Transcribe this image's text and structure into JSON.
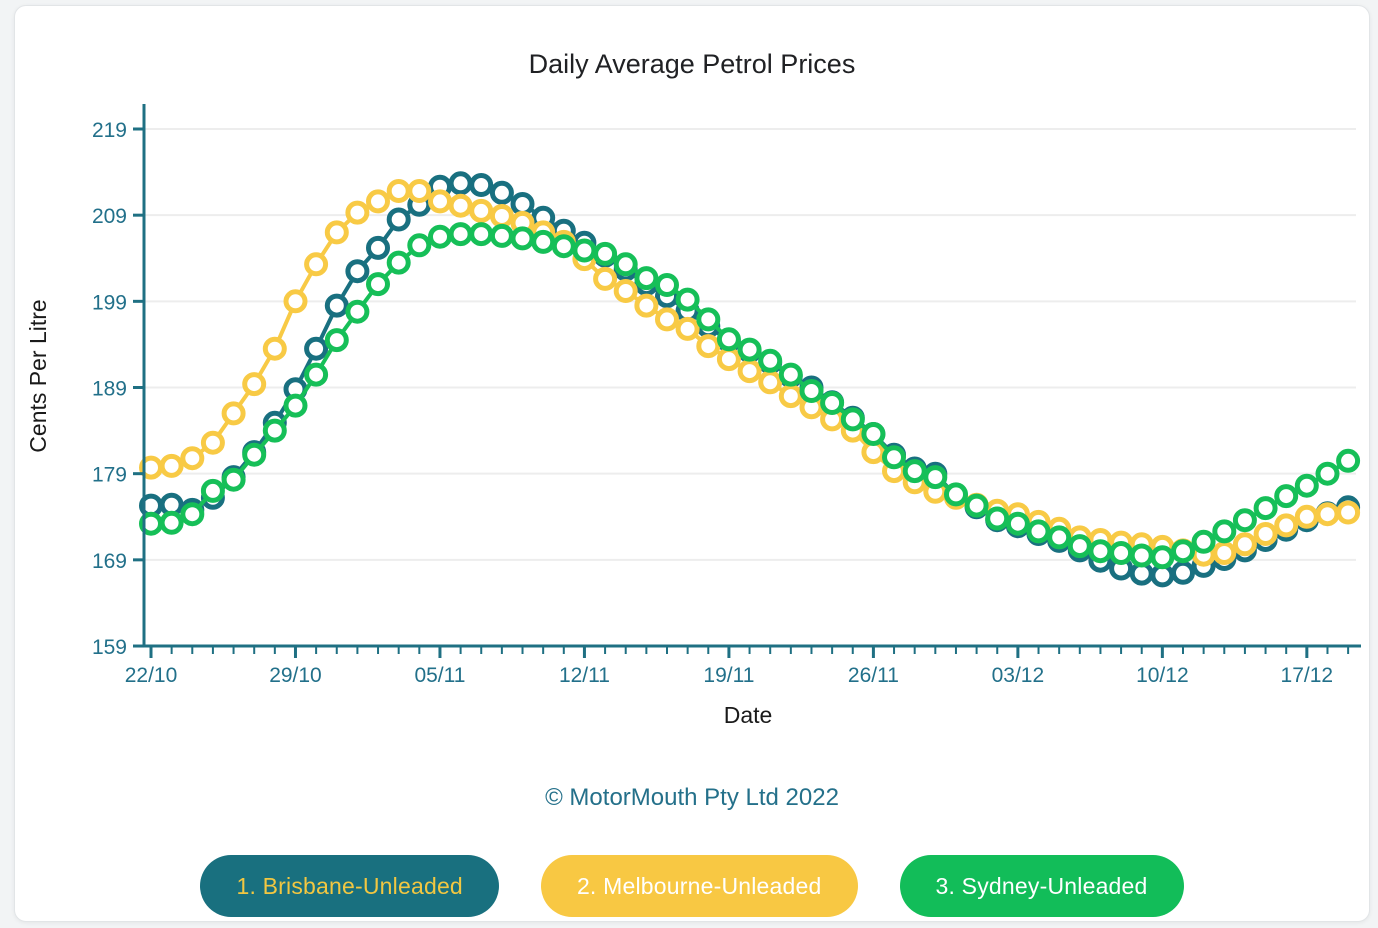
{
  "page": {
    "title": "Daily Average Petrol Prices",
    "copyright": "© MotorMouth Pty Ltd 2022"
  },
  "chart_data": {
    "type": "line",
    "title": "Daily Average Petrol Prices",
    "xlabel": "Date",
    "ylabel": "Cents Per Litre",
    "ylim": [
      159,
      219
    ],
    "ytick_step": 10,
    "ytick_labels": [
      "159",
      "169",
      "179",
      "189",
      "199",
      "209",
      "219"
    ],
    "grid": "horizontal",
    "legend_position": "bottom",
    "marker_style": "hollow-circle",
    "axis_color": "#1f7083",
    "tick_label_color": "#22708a",
    "grid_color": "#ededed",
    "x": [
      "22/10",
      "23/10",
      "24/10",
      "25/10",
      "26/10",
      "27/10",
      "28/10",
      "29/10",
      "30/10",
      "31/10",
      "01/11",
      "02/11",
      "03/11",
      "04/11",
      "05/11",
      "06/11",
      "07/11",
      "08/11",
      "09/11",
      "10/11",
      "11/11",
      "12/11",
      "13/11",
      "14/11",
      "15/11",
      "16/11",
      "17/11",
      "18/11",
      "19/11",
      "20/11",
      "21/11",
      "22/11",
      "23/11",
      "24/11",
      "25/11",
      "26/11",
      "27/11",
      "28/11",
      "29/11",
      "30/11",
      "01/12",
      "02/12",
      "03/12",
      "04/12",
      "05/12",
      "06/12",
      "07/12",
      "08/12",
      "09/12",
      "10/12",
      "11/12",
      "12/12",
      "13/12",
      "14/12",
      "15/12",
      "16/12",
      "17/12",
      "18/12",
      "19/12"
    ],
    "x_major_ticklabels": [
      "22/10",
      "29/10",
      "05/11",
      "12/11",
      "19/11",
      "26/11",
      "03/12",
      "10/12",
      "17/12"
    ],
    "x_major_indices": [
      0,
      7,
      14,
      21,
      28,
      35,
      42,
      49,
      56
    ],
    "series": [
      {
        "name": "1. Brisbane-Unleaded",
        "color": "#197080",
        "values": [
          175.3,
          175.4,
          174.8,
          176.2,
          178.6,
          181.5,
          184.9,
          188.8,
          193.5,
          198.5,
          202.5,
          205.2,
          208.5,
          210.2,
          212.3,
          212.7,
          212.5,
          211.6,
          210.3,
          208.7,
          207.2,
          205.8,
          204.3,
          202.7,
          201.0,
          199.6,
          197.9,
          196.1,
          194.4,
          193.2,
          191.9,
          190.3,
          189.0,
          187.3,
          185.5,
          183.6,
          181.2,
          179.6,
          179.0,
          176.4,
          175.1,
          173.6,
          172.9,
          172.0,
          171.2,
          170.1,
          168.9,
          168.0,
          167.4,
          167.2,
          167.5,
          168.3,
          169.1,
          170.1,
          171.3,
          172.5,
          173.6,
          174.4,
          175.1
        ]
      },
      {
        "name": "2. Melbourne-Unleaded",
        "color": "#f8ca45",
        "values": [
          179.7,
          179.9,
          180.8,
          182.6,
          186.0,
          189.4,
          193.5,
          199.0,
          203.3,
          207.0,
          209.3,
          210.6,
          211.8,
          211.8,
          210.6,
          210.1,
          209.5,
          208.9,
          208.1,
          207.0,
          205.9,
          203.9,
          201.6,
          200.2,
          198.5,
          196.9,
          195.8,
          193.8,
          192.3,
          190.9,
          189.6,
          188.0,
          186.7,
          185.3,
          184.0,
          181.5,
          179.3,
          178.0,
          176.9,
          176.2,
          175.4,
          174.7,
          174.3,
          173.4,
          172.6,
          171.6,
          171.3,
          171.0,
          170.8,
          170.5,
          170.1,
          169.6,
          169.8,
          170.8,
          172.0,
          173.0,
          174.0,
          174.3,
          174.5
        ]
      },
      {
        "name": "3. Sydney-Unleaded",
        "color": "#16bf58",
        "values": [
          173.2,
          173.3,
          174.3,
          177.0,
          178.3,
          181.2,
          184.0,
          186.9,
          190.5,
          194.5,
          197.8,
          201.0,
          203.5,
          205.5,
          206.5,
          206.8,
          206.8,
          206.6,
          206.3,
          205.9,
          205.4,
          204.9,
          204.5,
          203.3,
          201.7,
          200.9,
          199.2,
          196.9,
          194.6,
          193.4,
          192.1,
          190.5,
          188.6,
          187.2,
          185.3,
          183.6,
          180.9,
          179.3,
          178.6,
          176.6,
          175.3,
          173.8,
          173.2,
          172.3,
          171.6,
          170.6,
          170.0,
          169.8,
          169.5,
          169.3,
          170.0,
          171.1,
          172.3,
          173.6,
          175.0,
          176.4,
          177.6,
          179.0,
          180.5
        ]
      }
    ]
  },
  "legend": {
    "items": [
      {
        "label": "1. Brisbane-Unleaded",
        "bg": "#19707f",
        "fg": "#f2c741"
      },
      {
        "label": "2. Melbourne-Unleaded",
        "bg": "#f8c843",
        "fg": "#ffffff"
      },
      {
        "label": "3. Sydney-Unleaded",
        "bg": "#12bd59",
        "fg": "#ffffff"
      }
    ]
  }
}
